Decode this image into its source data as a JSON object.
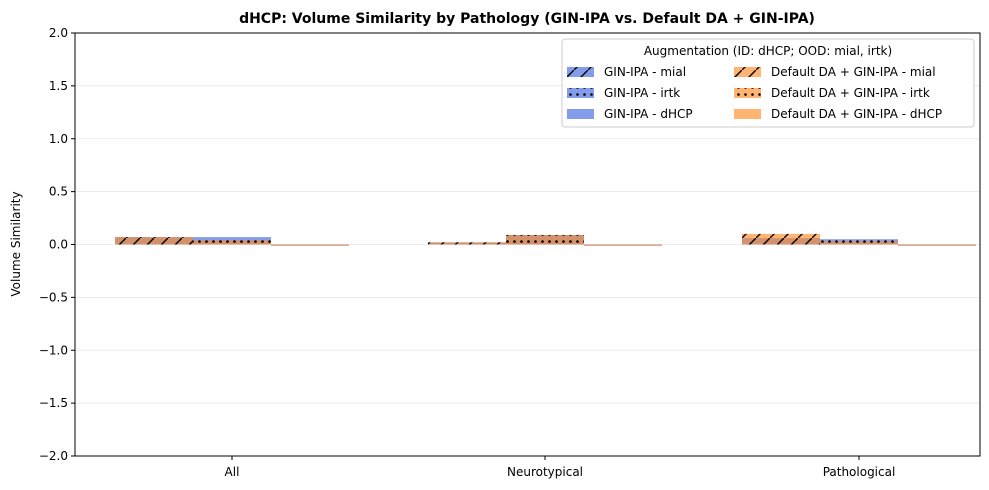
{
  "chart_data": {
    "type": "bar",
    "title": "dHCP: Volume Similarity by Pathology (GIN-IPA vs. Default DA + GIN-IPA)",
    "xlabel": "",
    "ylabel": "Volume Similarity",
    "categories": [
      "All",
      "Neurotypical",
      "Pathological"
    ],
    "ylim": [
      -2.0,
      2.0
    ],
    "yticks": [
      "−2.0",
      "−1.5",
      "−1.0",
      "−0.5",
      "0.0",
      "0.5",
      "1.0",
      "1.5",
      "2.0"
    ],
    "ytick_values": [
      -2.0,
      -1.5,
      -1.0,
      -0.5,
      0.0,
      0.5,
      1.0,
      1.5,
      2.0
    ],
    "grid": "horizontal",
    "legend": {
      "title": "Augmentation (ID: dHCP; OOD: mial, irtk)",
      "placement": "top-right",
      "columns": 2
    },
    "series": [
      {
        "name": "GIN-IPA - mial",
        "values": [
          0.07,
          0.02,
          0.06
        ],
        "color": "#4169e1",
        "hatch": "slash",
        "slot": 0
      },
      {
        "name": "GIN-IPA - irtk",
        "values": [
          0.07,
          0.09,
          0.05
        ],
        "color": "#4169e1",
        "hatch": "dots",
        "slot": 1
      },
      {
        "name": "GIN-IPA - dHCP",
        "values": [
          0.0,
          0.0,
          0.0
        ],
        "color": "#4169e1",
        "hatch": "none",
        "slot": 2
      },
      {
        "name": "Default DA + GIN-IPA - mial",
        "values": [
          0.07,
          0.02,
          0.1
        ],
        "color": "#ff8c28",
        "hatch": "slash",
        "slot": 0
      },
      {
        "name": "Default DA + GIN-IPA - irtk",
        "values": [
          0.04,
          0.09,
          0.03
        ],
        "color": "#ff8c28",
        "hatch": "dots",
        "slot": 1
      },
      {
        "name": "Default DA + GIN-IPA - dHCP",
        "values": [
          0.0,
          0.0,
          0.0
        ],
        "color": "#ff8c28",
        "hatch": "none",
        "slot": 2
      }
    ]
  }
}
